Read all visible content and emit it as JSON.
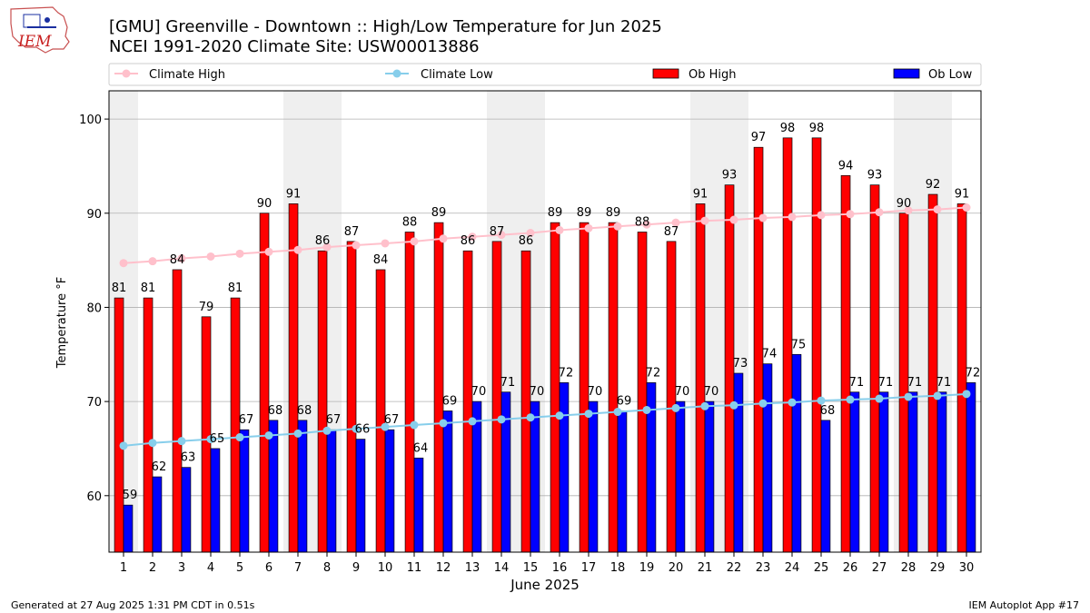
{
  "header": {
    "logo_text": "IEM",
    "title_line1": "[GMU] Greenville - Downtown :: High/Low Temperature for Jun 2025",
    "title_line2": "NCEI 1991-2020 Climate Site: USW00013886"
  },
  "footer": {
    "generated": "Generated at 27 Aug 2025 1:31 PM CDT in 0.51s",
    "app": "IEM Autoplot App #17"
  },
  "colors": {
    "ob_high": "#ff0000",
    "ob_low": "#0000ff",
    "climate_high": "#ffc0cb",
    "climate_low": "#87ceeb",
    "weekend_band": "#efefef",
    "grid": "#b0b0b0"
  },
  "chart_data": {
    "type": "bar",
    "xlabel": "June 2025",
    "ylabel": "Temperature °F",
    "ylim": [
      54,
      103
    ],
    "yticks": [
      60,
      70,
      80,
      90,
      100
    ],
    "grid": "horizontal",
    "legend_placement": "top",
    "categories": [
      "1",
      "2",
      "3",
      "4",
      "5",
      "6",
      "7",
      "8",
      "9",
      "10",
      "11",
      "12",
      "13",
      "14",
      "15",
      "16",
      "17",
      "18",
      "19",
      "20",
      "21",
      "22",
      "23",
      "24",
      "25",
      "26",
      "27",
      "28",
      "29",
      "30"
    ],
    "shaded_days": [
      1,
      7,
      8,
      14,
      15,
      21,
      22,
      28,
      29
    ],
    "series": [
      {
        "name": "Ob High",
        "kind": "bar",
        "values": [
          81,
          81,
          84,
          79,
          81,
          90,
          91,
          86,
          87,
          84,
          88,
          89,
          86,
          87,
          86,
          89,
          89,
          89,
          88,
          87,
          91,
          93,
          97,
          98,
          98,
          94,
          93,
          90,
          92,
          91
        ]
      },
      {
        "name": "Ob Low",
        "kind": "bar",
        "values": [
          59,
          62,
          63,
          65,
          67,
          68,
          68,
          67,
          66,
          67,
          64,
          69,
          70,
          71,
          70,
          72,
          70,
          69,
          72,
          70,
          70,
          73,
          74,
          75,
          68,
          71,
          71,
          71,
          71,
          72
        ]
      },
      {
        "name": "Climate High",
        "kind": "line",
        "values": [
          84.7,
          84.9,
          85.2,
          85.4,
          85.7,
          85.9,
          86.1,
          86.4,
          86.6,
          86.8,
          87.0,
          87.3,
          87.5,
          87.7,
          87.9,
          88.2,
          88.4,
          88.6,
          88.8,
          89.0,
          89.2,
          89.3,
          89.5,
          89.6,
          89.8,
          89.9,
          90.1,
          90.3,
          90.4,
          90.6
        ]
      },
      {
        "name": "Climate Low",
        "kind": "line",
        "values": [
          65.3,
          65.6,
          65.8,
          66.0,
          66.2,
          66.4,
          66.6,
          66.9,
          67.1,
          67.3,
          67.5,
          67.7,
          67.9,
          68.1,
          68.3,
          68.5,
          68.7,
          68.9,
          69.1,
          69.3,
          69.5,
          69.6,
          69.8,
          69.9,
          70.1,
          70.2,
          70.3,
          70.5,
          70.6,
          70.8
        ]
      }
    ]
  }
}
